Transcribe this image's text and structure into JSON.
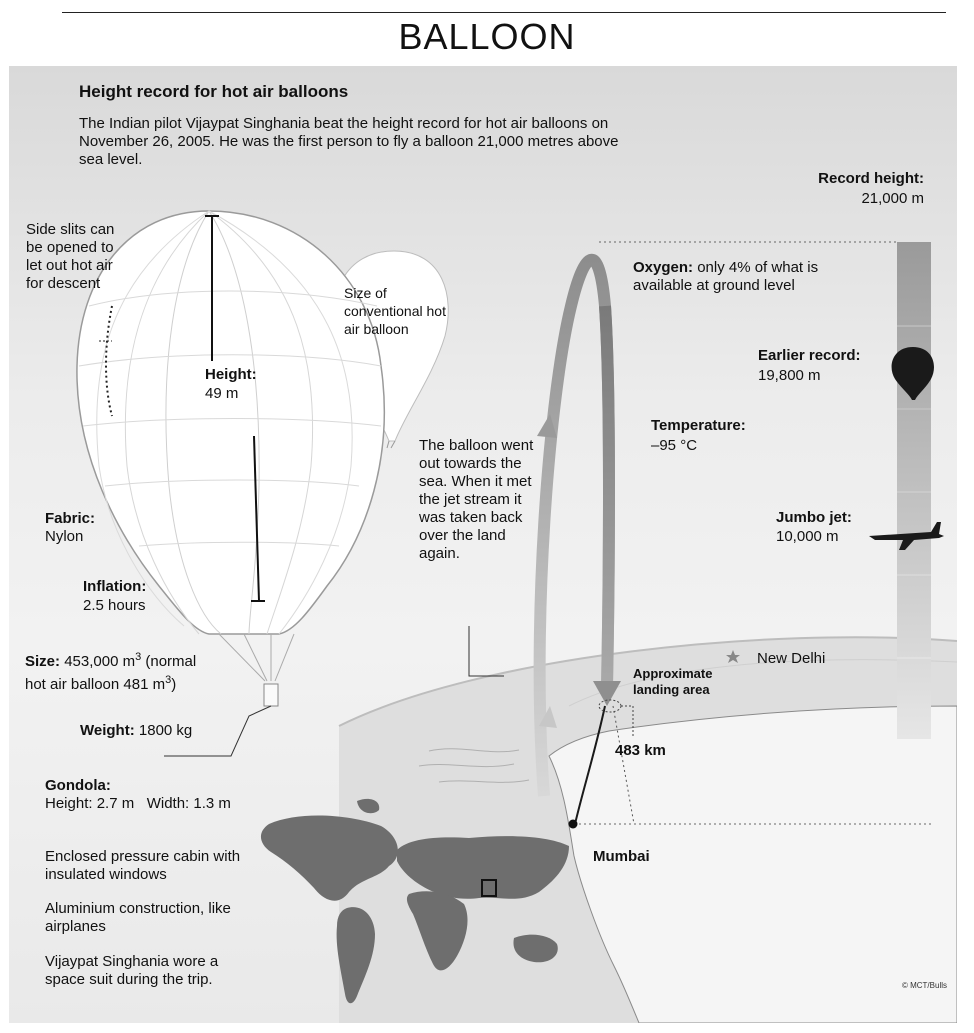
{
  "page": {
    "title": "BALLOON"
  },
  "intro": {
    "heading": "Height record for hot air balloons",
    "text": "The Indian pilot Vijaypat Singhania beat the height record for hot air balloons on November 26, 2005. He was the first person to fly a balloon 21,000 metres above sea level."
  },
  "balloon": {
    "side_slits": "Side slits can be opened to let out hot air for descent",
    "conventional": "Size of conventional hot air balloon",
    "height_label": "Height:",
    "height_value": "49 m",
    "fabric_label": "Fabric:",
    "fabric_value": "Nylon",
    "inflation_label": "Inflation:",
    "inflation_value": "2.5 hours",
    "size_label": "Size:",
    "size_value": "453,000 m",
    "size_sup": "3",
    "size_note": "(normal",
    "size_line2": "hot air balloon 481 m",
    "size_line2_sup": "3",
    "size_line2_end": ")",
    "weight_label": "Weight:",
    "weight_value": "1800 kg"
  },
  "gondola": {
    "label": "Gondola:",
    "dimensions": "Height: 2.7 m   Width: 1.3 m",
    "cabin": "Enclosed pressure cabin with insulated windows",
    "construction": "Aluminium construction, like airplanes",
    "suit": "Vijaypat Singhania wore a space suit during the trip."
  },
  "altitude": {
    "record_label": "Record height:",
    "record_value": "21,000 m",
    "oxygen_label": "Oxygen:",
    "oxygen_text": "only 4% of what is available at ground level",
    "earlier_label": "Earlier record:",
    "earlier_value": "19,800 m",
    "temperature_label": "Temperature:",
    "temperature_value": "–95 °C",
    "jet_label": "Jumbo jet:",
    "jet_value": "10,000 m"
  },
  "route": {
    "note": "The balloon went out towards the sea. When it met the jet stream it was taken back over the land again.",
    "new_delhi": "New Delhi",
    "landing": "Approximate landing area",
    "distance": "483 km",
    "mumbai": "Mumbai"
  },
  "credit": "© MCT/Bulls",
  "colors": {
    "background": "#e8e8e8",
    "balloon_fill": "#ffffff",
    "arrow_up": "#9a9a9a",
    "arrow_down": "#808080",
    "land": "#6e6e6e"
  }
}
